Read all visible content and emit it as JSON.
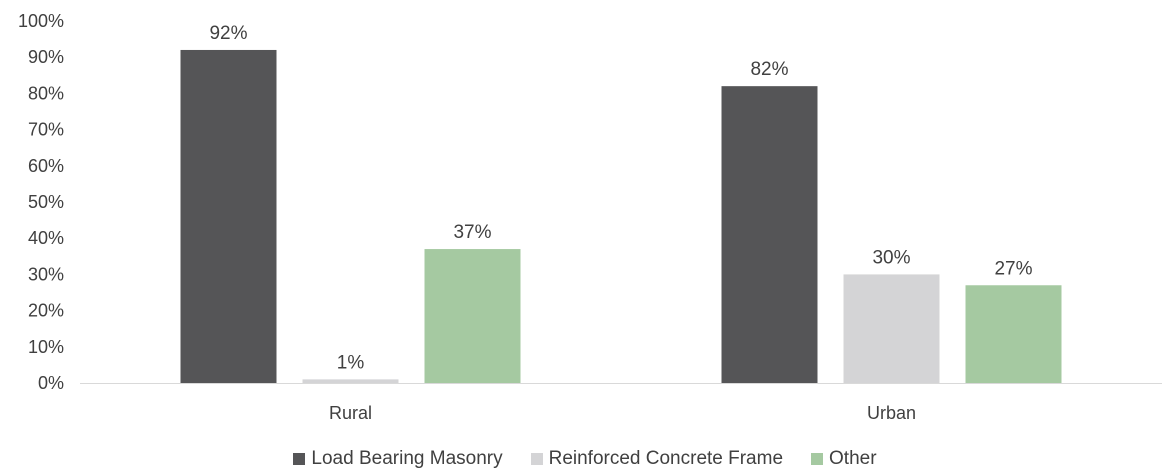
{
  "chart_data": {
    "type": "bar",
    "categories": [
      "Rural",
      "Urban"
    ],
    "series": [
      {
        "name": "Load Bearing Masonry",
        "values": [
          92,
          82
        ],
        "labels": [
          "92%",
          "82%"
        ],
        "color": "#555557"
      },
      {
        "name": "Reinforced Concrete Frame",
        "values": [
          1,
          30
        ],
        "labels": [
          "1%",
          "30%"
        ],
        "color": "#d4d4d6"
      },
      {
        "name": "Other",
        "values": [
          37,
          27
        ],
        "labels": [
          "37%",
          "27%"
        ],
        "color": "#a5c9a1"
      }
    ],
    "ylim": [
      0,
      100
    ],
    "yticks": [
      "0%",
      "10%",
      "20%",
      "30%",
      "40%",
      "50%",
      "60%",
      "70%",
      "80%",
      "90%",
      "100%"
    ],
    "title": "",
    "xlabel": "",
    "ylabel": "",
    "grid": false,
    "legend_position": "bottom"
  }
}
